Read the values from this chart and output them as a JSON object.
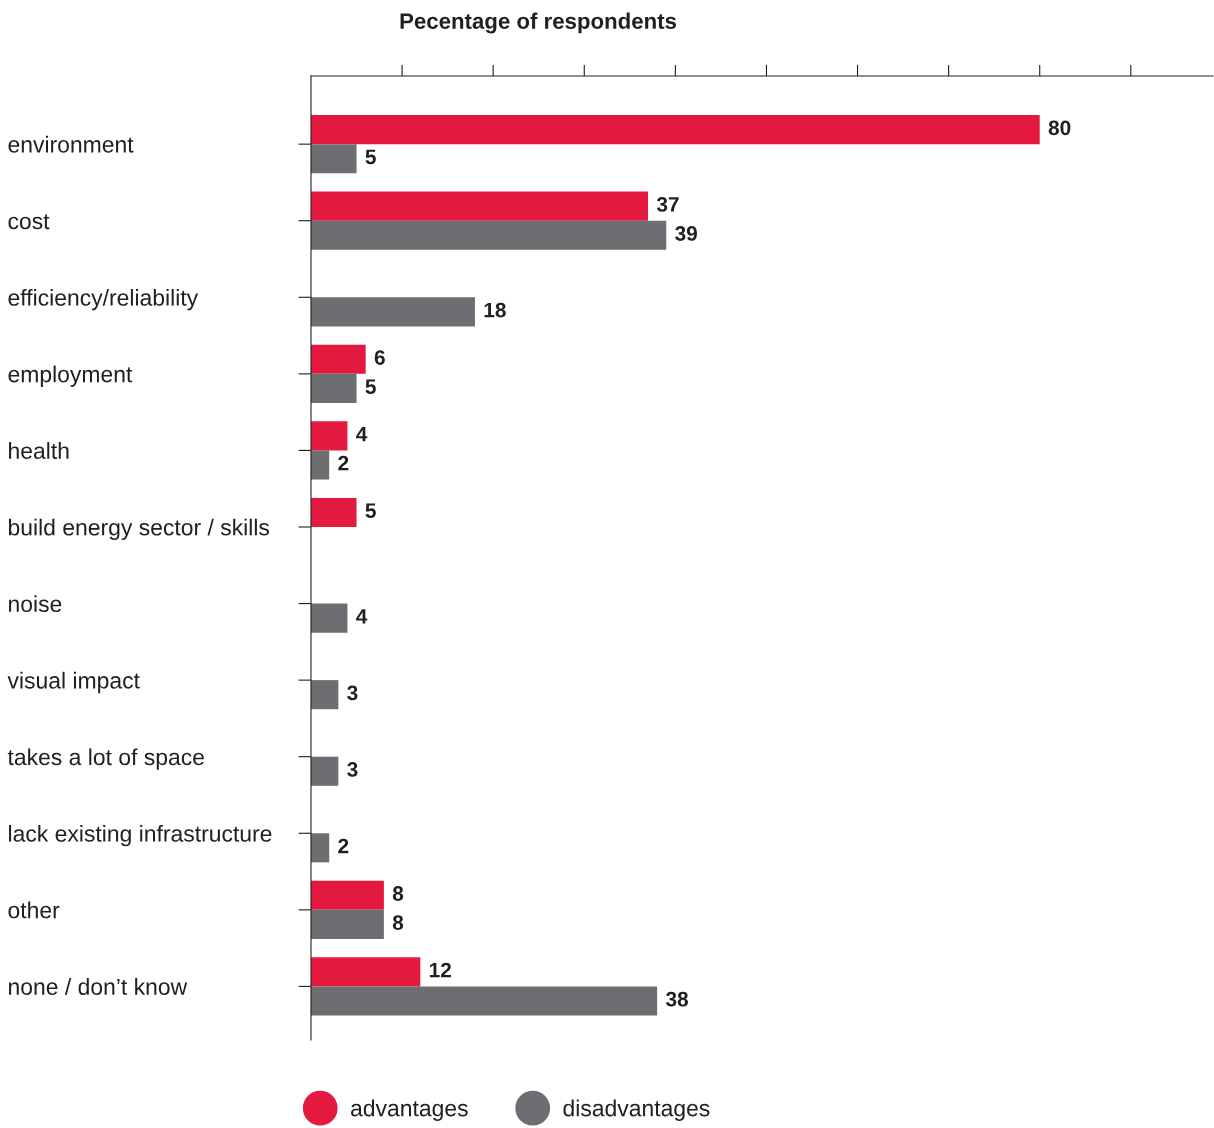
{
  "chart_data": {
    "type": "bar",
    "orientation": "horizontal",
    "title": "Pecentage of respondents",
    "categories": [
      "environment",
      "cost",
      "efficiency/reliability",
      "employment",
      "health",
      "build energy sector / skills",
      "noise",
      "visual impact",
      "takes a lot of space",
      "lack existing infrastructure",
      "other",
      "none / don’t know"
    ],
    "series": [
      {
        "name": "advantages",
        "color": "#e4193f",
        "values": [
          80,
          37,
          null,
          6,
          4,
          5,
          null,
          null,
          null,
          null,
          8,
          12
        ]
      },
      {
        "name": "disadvantages",
        "color": "#6d6e71",
        "values": [
          5,
          39,
          18,
          5,
          2,
          null,
          4,
          3,
          3,
          2,
          8,
          38
        ]
      }
    ],
    "xlim": [
      0,
      99
    ],
    "xticks": [
      {
        "value": 10,
        "label": null
      },
      {
        "value": 20,
        "label": null
      },
      {
        "value": 30,
        "label": null
      },
      {
        "value": 40,
        "label": null
      },
      {
        "value": 50,
        "label": null
      },
      {
        "value": 60,
        "label": null
      },
      {
        "value": 70,
        "label": null
      },
      {
        "value": 80,
        "label": null
      },
      {
        "value": 90,
        "label": null
      }
    ],
    "data_labels": true,
    "legend": "bottom",
    "grid": false
  }
}
